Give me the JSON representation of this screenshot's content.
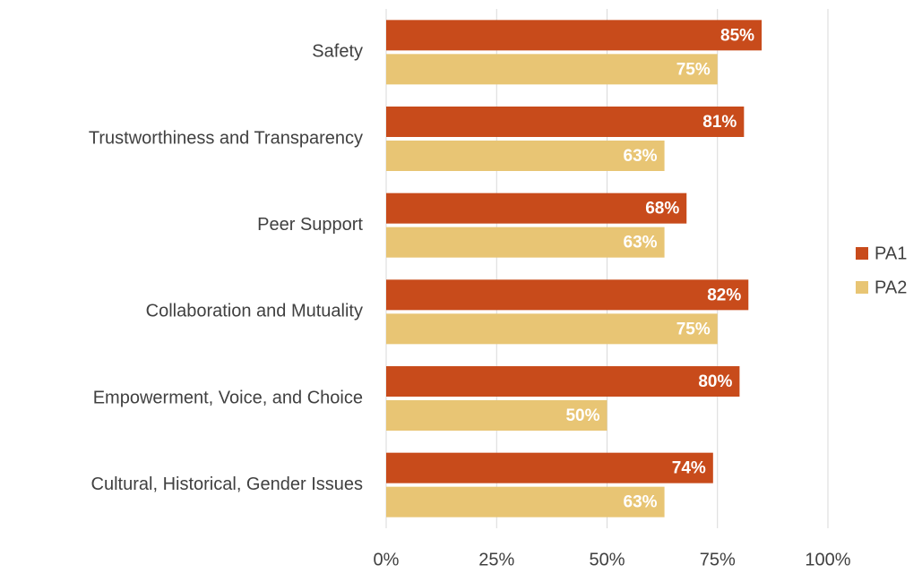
{
  "chart_data": {
    "type": "hbar",
    "categories": [
      "Safety",
      "Trustworthiness and Transparency",
      "Peer Support",
      "Collaboration and Mutuality",
      "Empowerment, Voice, and Choice",
      "Cultural, Historical, Gender Issues"
    ],
    "series": [
      {
        "name": "PA1",
        "color": "#c84b1b",
        "values": [
          85,
          81,
          68,
          82,
          80,
          74
        ],
        "value_labels": [
          "85%",
          "81%",
          "68%",
          "82%",
          "80%",
          "74%"
        ]
      },
      {
        "name": "PA2",
        "color": "#e8c574",
        "values": [
          75,
          63,
          63,
          75,
          50,
          63
        ],
        "value_labels": [
          "75%",
          "63%",
          "63%",
          "75%",
          "50%",
          "63%"
        ]
      }
    ],
    "xlim": [
      0,
      100
    ],
    "xticks": [
      {
        "value": 0,
        "label": "0%"
      },
      {
        "value": 25,
        "label": "25%"
      },
      {
        "value": 50,
        "label": "50%"
      },
      {
        "value": 75,
        "label": "75%"
      },
      {
        "value": 100,
        "label": "100%"
      }
    ],
    "grid": true,
    "legend": "right"
  }
}
